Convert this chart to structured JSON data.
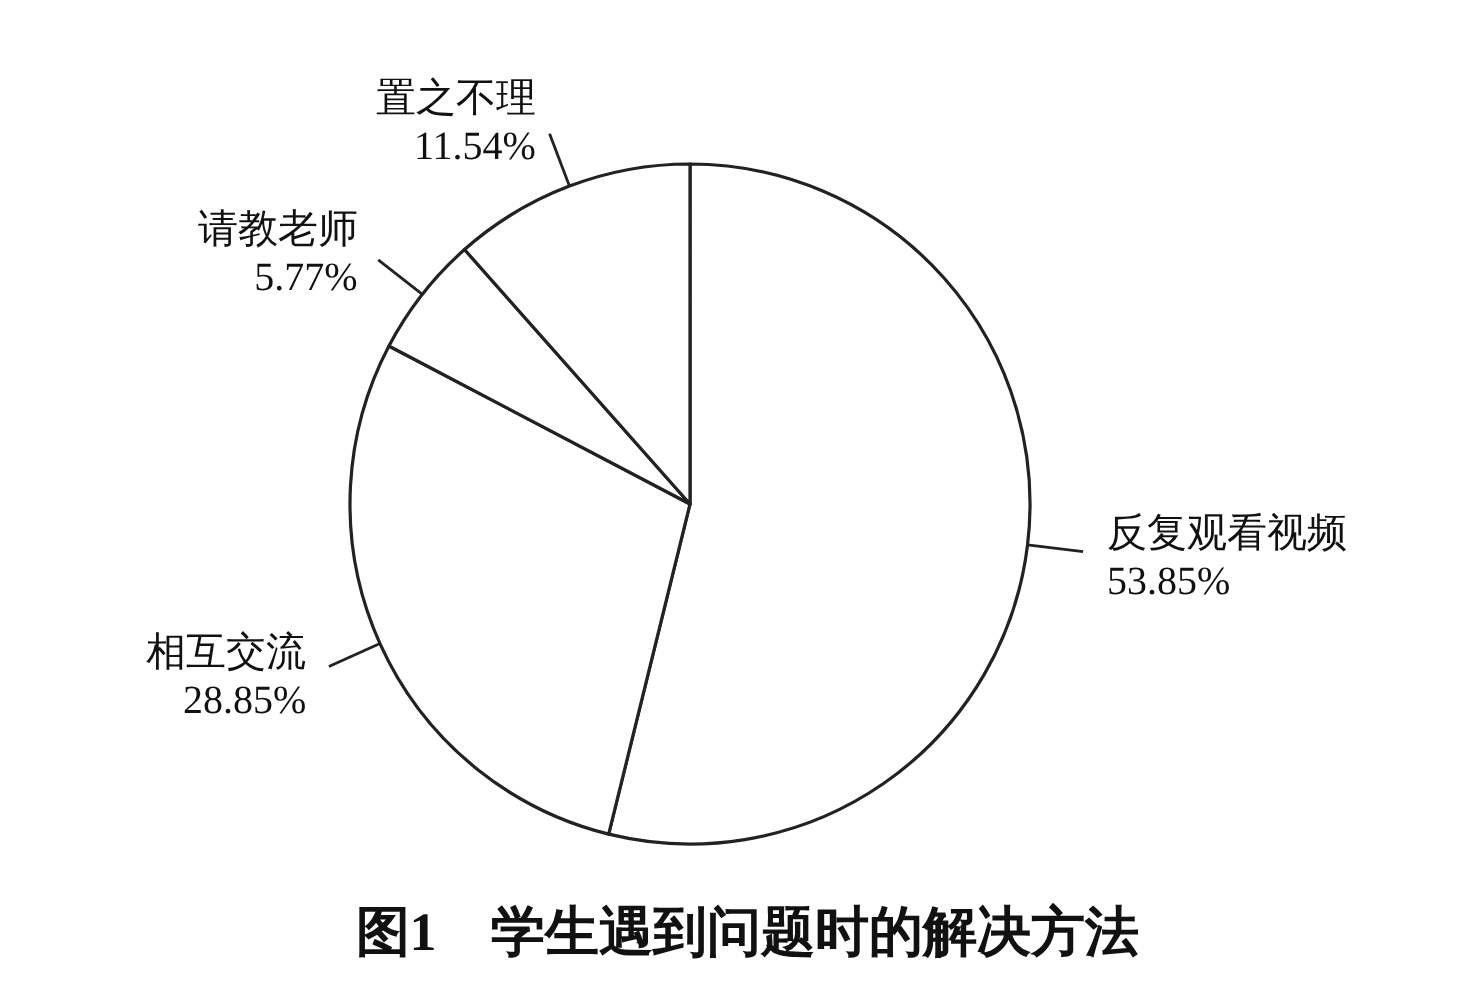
{
  "chart_data": {
    "type": "pie",
    "title": "图1　学生遇到问题时的解决方法",
    "categories": [
      "反复观看视频",
      "相互交流",
      "请教老师",
      "置之不理"
    ],
    "values": [
      53.85,
      28.85,
      5.77,
      11.54
    ],
    "colors": [
      "#ffffff",
      "#ffffff",
      "#ffffff",
      "#ffffff"
    ],
    "value_labels": [
      "53.85%",
      "28.85%",
      "5.77%",
      "11.54%"
    ],
    "legend": false
  }
}
